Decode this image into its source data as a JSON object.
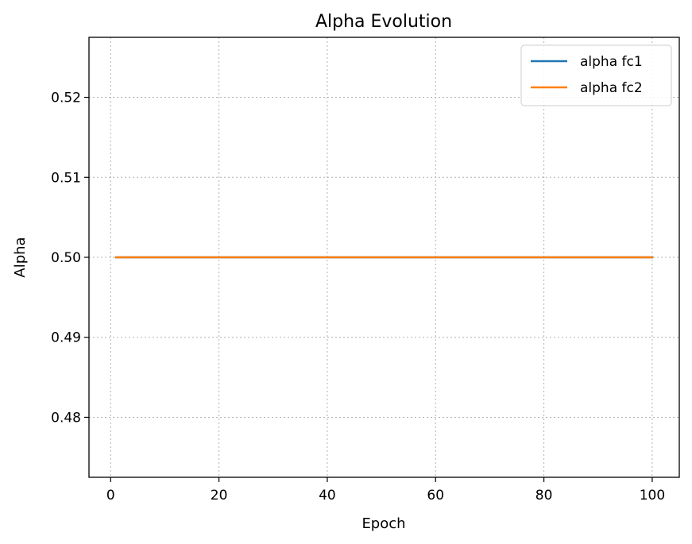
{
  "chart_data": {
    "type": "line",
    "title": "Alpha Evolution",
    "xlabel": "Epoch",
    "ylabel": "Alpha",
    "xlim": [
      -4,
      105
    ],
    "ylim": [
      0.4725,
      0.5275
    ],
    "xticks": [
      0,
      20,
      40,
      60,
      80,
      100
    ],
    "yticks": [
      0.48,
      0.49,
      0.5,
      0.51,
      0.52
    ],
    "xtick_labels": [
      "0",
      "20",
      "40",
      "60",
      "80",
      "100"
    ],
    "ytick_labels": [
      "0.48",
      "0.49",
      "0.50",
      "0.51",
      "0.52"
    ],
    "grid": true,
    "legend_position": "top-right",
    "series": [
      {
        "name": "alpha fc1",
        "color": "#1f77b4",
        "x": [
          1,
          100
        ],
        "y": [
          0.5,
          0.5
        ]
      },
      {
        "name": "alpha fc2",
        "color": "#ff7f0e",
        "x": [
          1,
          100
        ],
        "y": [
          0.5,
          0.5
        ]
      }
    ]
  }
}
